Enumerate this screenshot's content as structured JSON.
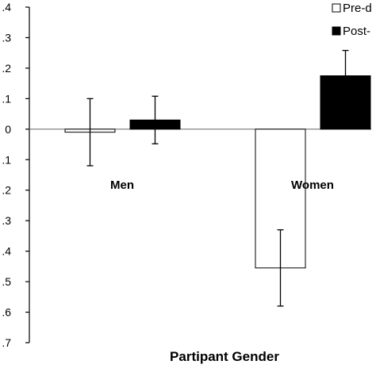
{
  "chart_data": {
    "type": "bar",
    "categories": [
      "Men",
      "Women"
    ],
    "series": [
      {
        "name": "Pre-d",
        "values": [
          -0.01,
          -0.455
        ],
        "error": [
          0.11,
          0.125
        ],
        "fill": "#ffffff"
      },
      {
        "name": "Post-",
        "values": [
          0.03,
          0.175
        ],
        "error": [
          0.078,
          0.083
        ],
        "fill": "#000000"
      }
    ],
    "ylim": [
      -0.7,
      0.4
    ],
    "yticks": [
      0.4,
      0.3,
      0.2,
      0.1,
      0,
      -0.1,
      -0.2,
      -0.3,
      -0.4,
      -0.5,
      -0.6,
      -0.7
    ],
    "ytick_labels": [
      ".4",
      ".3",
      ".2",
      ".1",
      "0",
      ".1",
      ".2",
      ".3",
      ".4",
      ".5",
      ".6",
      ".7"
    ],
    "xlabel": "Partipant Gender",
    "ylabel": "",
    "title": "",
    "legend_position": "top-right",
    "grid": false
  }
}
